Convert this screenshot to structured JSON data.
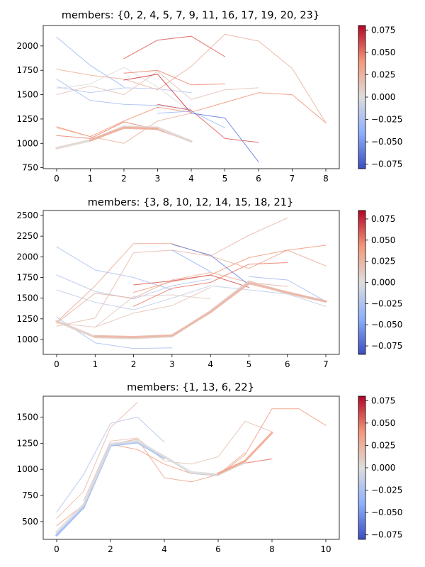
{
  "colorbar": {
    "colormap": "coolwarm",
    "ticks": [
      "0.075",
      "0.050",
      "0.025",
      "0.000",
      "−0.025",
      "−0.050",
      "−0.075"
    ]
  },
  "chart_data": [
    {
      "type": "line",
      "title": "members: {0, 2, 4, 5, 7, 9, 11, 16, 17, 19, 20, 23}",
      "xlim": [
        -0.4,
        8.4
      ],
      "ylim": [
        740,
        2210
      ],
      "xticks": [
        "0",
        "1",
        "2",
        "3",
        "4",
        "5",
        "6",
        "7",
        "8"
      ],
      "yticks": [
        "750",
        "1000",
        "1250",
        "1500",
        "1750",
        "2000"
      ],
      "color_range": [
        -0.08,
        0.08
      ],
      "series": [
        {
          "x": [
            0,
            1,
            2
          ],
          "y": [
            2090,
            1800,
            1580
          ],
          "c": -0.03,
          "w": 1
        },
        {
          "x": [
            0,
            1,
            2,
            3,
            4
          ],
          "y": [
            1660,
            1440,
            1400,
            1390,
            1350
          ],
          "c": -0.025,
          "w": 1
        },
        {
          "x": [
            0,
            1,
            2,
            3,
            4
          ],
          "y": [
            1580,
            1520,
            1570,
            1560,
            1520
          ],
          "c": -0.02,
          "w": 1
        },
        {
          "x": [
            0,
            1,
            2,
            3,
            4
          ],
          "y": [
            1560,
            1610,
            1780,
            1580,
            1320
          ],
          "c": 0.0,
          "w": 1
        },
        {
          "x": [
            0,
            1,
            2,
            3,
            4,
            5,
            6,
            7,
            8
          ],
          "y": [
            1760,
            1700,
            1660,
            1550,
            1790,
            2120,
            2050,
            1770,
            1210
          ],
          "c": 0.025,
          "w": 1
        },
        {
          "x": [
            0,
            1,
            2,
            3,
            4,
            5,
            6
          ],
          "y": [
            1500,
            1590,
            1500,
            1740,
            1450,
            1550,
            1570
          ],
          "c": 0.015,
          "w": 1
        },
        {
          "x": [
            0,
            1,
            2,
            3,
            4
          ],
          "y": [
            1160,
            1070,
            1000,
            1230,
            1310
          ],
          "c": 0.025,
          "w": 1
        },
        {
          "x": [
            0,
            1,
            2,
            3,
            4
          ],
          "y": [
            1080,
            1050,
            1220,
            1140,
            1020
          ],
          "c": 0.045,
          "w": 1
        },
        {
          "x": [
            0,
            1,
            2
          ],
          "y": [
            1170,
            1070,
            1230
          ],
          "c": 0.04,
          "w": 1
        },
        {
          "x": [
            2,
            3,
            4,
            5
          ],
          "y": [
            1870,
            2060,
            2100,
            1890
          ],
          "c": 0.055,
          "w": 1
        },
        {
          "x": [
            2,
            3,
            4,
            5
          ],
          "y": [
            1720,
            1750,
            1600,
            1610
          ],
          "c": 0.045,
          "w": 1
        },
        {
          "x": [
            2,
            3,
            4
          ],
          "y": [
            1650,
            1710,
            1310
          ],
          "c": 0.065,
          "w": 1
        },
        {
          "x": [
            2,
            3,
            4,
            5,
            6,
            7,
            8
          ],
          "y": [
            1230,
            1370,
            1320,
            1420,
            1520,
            1500,
            1210
          ],
          "c": 0.04,
          "w": 1
        },
        {
          "x": [
            3,
            4,
            5,
            6
          ],
          "y": [
            1400,
            1340,
            1050,
            1010
          ],
          "c": 0.055,
          "w": 1
        },
        {
          "x": [
            3,
            4,
            5
          ],
          "y": [
            1310,
            1330,
            1160
          ],
          "c": -0.03,
          "w": 1
        },
        {
          "x": [
            4,
            5,
            6
          ],
          "y": [
            1310,
            1260,
            810
          ],
          "c": -0.06,
          "w": 1
        },
        {
          "x": [
            0,
            1,
            2,
            3,
            4
          ],
          "y": [
            950,
            1030,
            1170,
            1160,
            1020
          ],
          "c": 0.005,
          "w": 3.5
        },
        {
          "x": [
            1,
            2,
            3
          ],
          "y": [
            1030,
            1160,
            1150
          ],
          "c": 0.03,
          "w": 3
        }
      ]
    },
    {
      "type": "line",
      "title": "members: {3, 8, 10, 12, 14, 15, 18, 21}",
      "xlim": [
        -0.35,
        7.35
      ],
      "ylim": [
        820,
        2560
      ],
      "xticks": [
        "0",
        "1",
        "2",
        "3",
        "4",
        "5",
        "6",
        "7"
      ],
      "yticks": [
        "1000",
        "1250",
        "1500",
        "1750",
        "2000",
        "2250",
        "2500"
      ],
      "color_range": [
        -0.085,
        0.085
      ],
      "series": [
        {
          "x": [
            0,
            1,
            2,
            3
          ],
          "y": [
            2120,
            1840,
            1750,
            1600
          ],
          "c": -0.025,
          "w": 1
        },
        {
          "x": [
            0,
            1,
            2,
            3,
            4
          ],
          "y": [
            1780,
            1580,
            1490,
            1650,
            1730
          ],
          "c": -0.02,
          "w": 1
        },
        {
          "x": [
            0,
            1,
            2,
            3,
            4,
            5,
            6,
            7
          ],
          "y": [
            1600,
            1450,
            1360,
            1500,
            1650,
            1600,
            1550,
            1400
          ],
          "c": -0.015,
          "w": 1
        },
        {
          "x": [
            0,
            1,
            2,
            3
          ],
          "y": [
            1270,
            960,
            890,
            900
          ],
          "c": -0.025,
          "w": 1
        },
        {
          "x": [
            0,
            1,
            2,
            3,
            4,
            5,
            6,
            7
          ],
          "y": [
            1210,
            1650,
            2160,
            2160,
            2010,
            1860,
            2080,
            1890
          ],
          "c": 0.03,
          "w": 1
        },
        {
          "x": [
            0,
            1,
            2,
            3,
            4,
            5,
            6
          ],
          "y": [
            1160,
            1260,
            2050,
            2080,
            2010,
            2260,
            2470
          ],
          "c": 0.02,
          "w": 1
        },
        {
          "x": [
            0,
            1,
            2,
            3,
            4,
            5,
            6
          ],
          "y": [
            1200,
            1560,
            1500,
            1720,
            1810,
            1690,
            1640
          ],
          "c": 0.025,
          "w": 1
        },
        {
          "x": [
            0,
            1,
            2,
            3,
            4
          ],
          "y": [
            1200,
            1150,
            1320,
            1410,
            1630
          ],
          "c": 0.015,
          "w": 1
        },
        {
          "x": [
            1,
            2,
            3,
            4
          ],
          "y": [
            1150,
            1520,
            1540,
            1490
          ],
          "c": 0.01,
          "w": 1
        },
        {
          "x": [
            2,
            3,
            4,
            5,
            6,
            7
          ],
          "y": [
            1570,
            1700,
            1780,
            1990,
            2080,
            2140
          ],
          "c": 0.04,
          "w": 1
        },
        {
          "x": [
            2,
            3,
            4,
            5,
            6
          ],
          "y": [
            1400,
            1620,
            1690,
            1910,
            1930
          ],
          "c": 0.05,
          "w": 1
        },
        {
          "x": [
            2,
            3,
            4,
            5
          ],
          "y": [
            1660,
            1710,
            1780,
            1630
          ],
          "c": 0.06,
          "w": 1
        },
        {
          "x": [
            3,
            4
          ],
          "y": [
            2080,
            1820
          ],
          "c": -0.04,
          "w": 1
        },
        {
          "x": [
            3,
            4,
            5
          ],
          "y": [
            2150,
            2020,
            1660
          ],
          "c": -0.06,
          "w": 1
        },
        {
          "x": [
            5,
            6,
            7
          ],
          "y": [
            1760,
            1720,
            1460
          ],
          "c": -0.03,
          "w": 1
        },
        {
          "x": [
            0,
            1,
            2,
            3,
            4,
            5,
            6,
            7
          ],
          "y": [
            1220,
            1030,
            1020,
            1040,
            1340,
            1700,
            1560,
            1460
          ],
          "c": 0.01,
          "w": 3.5
        },
        {
          "x": [
            1,
            2,
            3,
            4,
            5,
            6,
            7
          ],
          "y": [
            1040,
            1030,
            1050,
            1330,
            1680,
            1570,
            1460
          ],
          "c": 0.025,
          "w": 3
        }
      ]
    },
    {
      "type": "line",
      "title": "members: {1, 13, 6, 22}",
      "xlim": [
        -0.5,
        10.5
      ],
      "ylim": [
        330,
        1700
      ],
      "xticks": [
        "0",
        "2",
        "4",
        "6",
        "8",
        "10"
      ],
      "yticks": [
        "500",
        "750",
        "1000",
        "1250",
        "1500"
      ],
      "color_range": [
        -0.08,
        0.08
      ],
      "series": [
        {
          "x": [
            0,
            1,
            2,
            3,
            4
          ],
          "y": [
            590,
            950,
            1440,
            1500,
            1260
          ],
          "c": -0.02,
          "w": 1
        },
        {
          "x": [
            0,
            1,
            2,
            3
          ],
          "y": [
            530,
            790,
            1400,
            1640
          ],
          "c": 0.02,
          "w": 1
        },
        {
          "x": [
            0,
            1,
            2,
            3,
            4,
            5,
            6,
            7
          ],
          "y": [
            460,
            660,
            1240,
            1290,
            920,
            880,
            950,
            1160
          ],
          "c": 0.03,
          "w": 1
        },
        {
          "x": [
            1,
            2,
            3,
            4,
            5,
            6,
            7,
            8
          ],
          "y": [
            700,
            1270,
            1300,
            1080,
            1050,
            1120,
            1460,
            1360
          ],
          "c": 0.015,
          "w": 1
        },
        {
          "x": [
            1,
            2,
            3,
            4,
            5,
            6,
            7,
            8,
            9,
            10
          ],
          "y": [
            620,
            1240,
            1190,
            1050,
            960,
            940,
            1140,
            1580,
            1580,
            1420
          ],
          "c": 0.035,
          "w": 1
        },
        {
          "x": [
            5,
            6,
            7,
            8
          ],
          "y": [
            960,
            950,
            1060,
            1100
          ],
          "c": 0.05,
          "w": 1
        },
        {
          "x": [
            4,
            5,
            6
          ],
          "y": [
            1130,
            960,
            940
          ],
          "c": -0.025,
          "w": 1
        },
        {
          "x": [
            0,
            1,
            2,
            3,
            4
          ],
          "y": [
            370,
            640,
            1230,
            1260,
            1110
          ],
          "c": -0.035,
          "w": 3.5
        },
        {
          "x": [
            0,
            1,
            2,
            3,
            4,
            5,
            6,
            7
          ],
          "y": [
            400,
            660,
            1240,
            1270,
            1120,
            970,
            950,
            1070
          ],
          "c": 0.0,
          "w": 3.5
        },
        {
          "x": [
            6,
            7,
            8
          ],
          "y": [
            960,
            1080,
            1350
          ],
          "c": 0.035,
          "w": 3
        }
      ]
    }
  ]
}
